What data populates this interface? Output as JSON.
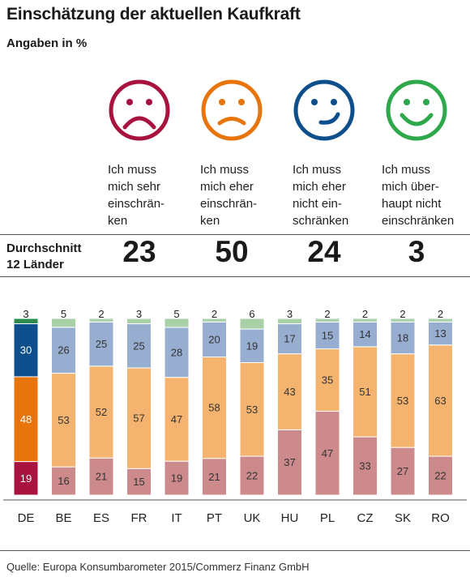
{
  "title": "Einschätzung der aktuellen Kaufkraft",
  "subtitle": "Angaben in %",
  "categories": [
    {
      "caption": "Ich muss\nmich sehr\neinschrän-\nken",
      "icon": "very-sad-face-icon",
      "color": "#a8123e"
    },
    {
      "caption": "Ich muss\nmich eher\neinschrän-\nken",
      "icon": "sad-face-icon",
      "color": "#e8740c"
    },
    {
      "caption": "Ich muss\nmich eher\nnicht ein-\nschränken",
      "icon": "smiling-face-icon",
      "color": "#0d4f8c"
    },
    {
      "caption": "Ich muss\nmich über-\nhaupt nicht\neinschränken",
      "icon": "big-smile-face-icon",
      "color": "#2ea84a"
    }
  ],
  "average": {
    "label": "Durchschnitt\n12 Länder",
    "values": [
      "23",
      "50",
      "24",
      "3"
    ]
  },
  "chart_data": {
    "type": "bar",
    "stacked": true,
    "categories": [
      "DE",
      "BE",
      "ES",
      "FR",
      "IT",
      "PT",
      "UK",
      "HU",
      "PL",
      "CZ",
      "SK",
      "RO"
    ],
    "series": [
      {
        "values": [
          19,
          16,
          21,
          15,
          19,
          21,
          22,
          37,
          47,
          33,
          27,
          22
        ]
      },
      {
        "values": [
          48,
          53,
          52,
          57,
          47,
          58,
          53,
          43,
          35,
          51,
          53,
          63
        ]
      },
      {
        "values": [
          30,
          26,
          25,
          25,
          28,
          20,
          19,
          17,
          15,
          14,
          18,
          13
        ]
      },
      {
        "values": [
          3,
          5,
          2,
          3,
          5,
          2,
          6,
          3,
          2,
          2,
          2,
          2
        ]
      }
    ],
    "highlight_colors": [
      "#a8123e",
      "#e8740c",
      "#0d4f8c",
      "#2e8b4e"
    ],
    "muted_colors": [
      "#cc8a8c",
      "#f4b46f",
      "#97aed1",
      "#a9d0a6"
    ]
  },
  "source": "Quelle: Europa Konsumbarometer 2015/Commerz Finanz GmbH"
}
